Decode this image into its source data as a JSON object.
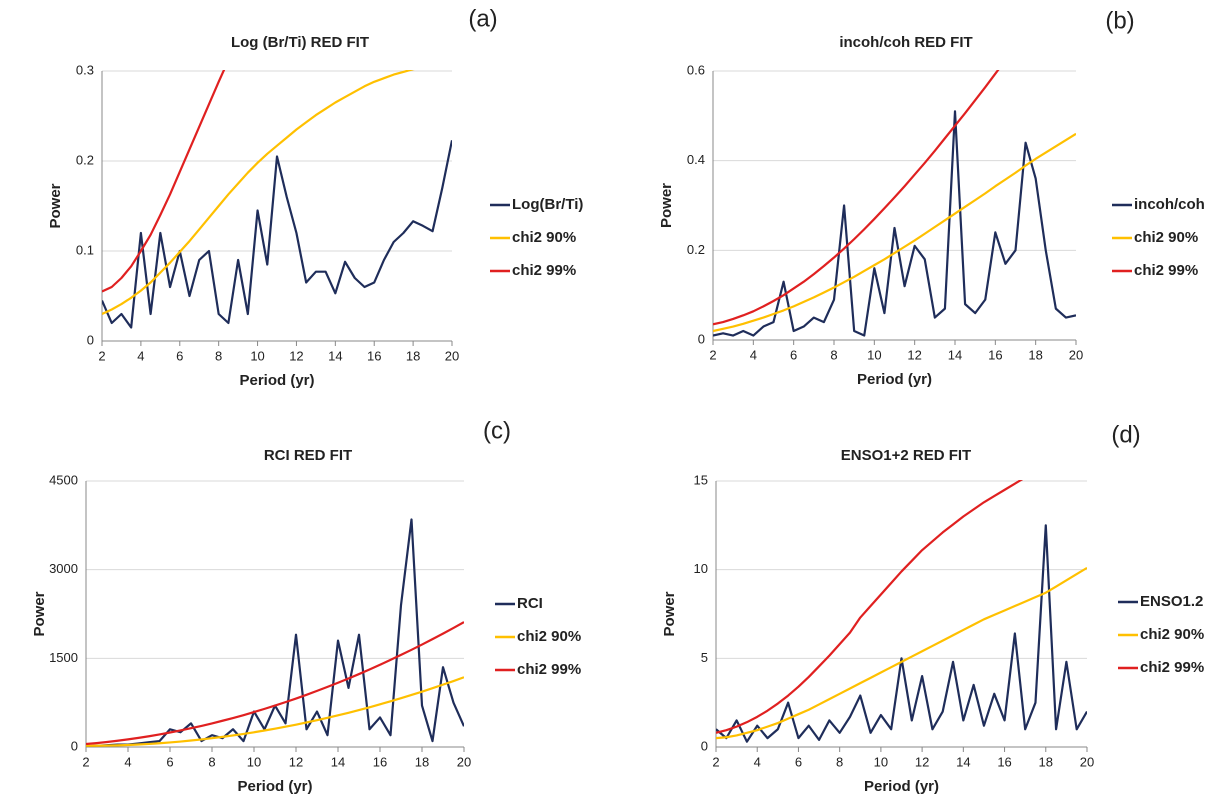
{
  "chart_data": [
    {
      "type": "line",
      "title": "Log (Br/Ti) RED FIT",
      "panel_label": "(a)",
      "xlabel": "Period (yr)",
      "ylabel": "Power",
      "grid": true,
      "xlim": [
        2,
        20
      ],
      "xticks": [
        2,
        4,
        6,
        8,
        10,
        12,
        14,
        16,
        18,
        20
      ],
      "ylim": [
        0,
        0.3
      ],
      "yticks": [
        0,
        0.1,
        0.2,
        0.3
      ],
      "x": [
        2,
        2.5,
        3,
        3.5,
        4,
        4.5,
        5,
        5.5,
        6,
        6.5,
        7,
        7.5,
        8,
        8.5,
        9,
        9.5,
        10,
        10.5,
        11,
        11.5,
        12,
        12.5,
        13,
        13.5,
        14,
        14.5,
        15,
        15.5,
        16,
        16.5,
        17,
        17.5,
        18,
        18.5,
        19,
        19.5,
        20
      ],
      "series": [
        {
          "name": "Log(Br/Ti)",
          "color": "#1f2d5a",
          "values": [
            0.045,
            0.02,
            0.03,
            0.015,
            0.12,
            0.03,
            0.12,
            0.06,
            0.1,
            0.05,
            0.09,
            0.1,
            0.03,
            0.02,
            0.09,
            0.03,
            0.145,
            0.085,
            0.205,
            0.16,
            0.12,
            0.065,
            0.077,
            0.077,
            0.053,
            0.088,
            0.07,
            0.06,
            0.065,
            0.09,
            0.11,
            0.12,
            0.133,
            0.128,
            0.122,
            0.17,
            0.223
          ]
        },
        {
          "name": "chi2 90%",
          "color": "#ffc000",
          "values": [
            0.03,
            0.035,
            0.041,
            0.048,
            0.056,
            0.065,
            0.076,
            0.087,
            0.099,
            0.111,
            0.124,
            0.137,
            0.15,
            0.163,
            0.175,
            0.187,
            0.198,
            0.208,
            0.217,
            0.226,
            0.235,
            0.243,
            0.251,
            0.258,
            0.265,
            0.271,
            0.277,
            0.283,
            0.288,
            0.292,
            0.296,
            0.299,
            0.302,
            0.304,
            0.306,
            0.308,
            0.31
          ]
        },
        {
          "name": "chi2 99%",
          "color": "#e02020",
          "values": [
            0.055,
            0.06,
            0.07,
            0.083,
            0.1,
            0.118,
            0.14,
            0.163,
            0.188,
            0.213,
            0.238,
            0.263,
            0.288,
            0.312,
            0.335,
            null,
            null,
            null,
            null,
            null,
            null,
            null,
            null,
            null,
            null,
            null,
            null,
            null,
            null,
            null,
            null,
            null,
            null,
            null,
            null,
            null,
            null
          ]
        }
      ]
    },
    {
      "type": "line",
      "title": "incoh/coh RED FIT",
      "panel_label": "(b)",
      "xlabel": "Period (yr)",
      "ylabel": "Power",
      "grid": true,
      "xlim": [
        2,
        20
      ],
      "xticks": [
        2,
        4,
        6,
        8,
        10,
        12,
        14,
        16,
        18,
        20
      ],
      "ylim": [
        0,
        0.6
      ],
      "yticks": [
        0,
        0.2,
        0.4,
        0.6
      ],
      "x": [
        2,
        2.5,
        3,
        3.5,
        4,
        4.5,
        5,
        5.5,
        6,
        6.5,
        7,
        7.5,
        8,
        8.5,
        9,
        9.5,
        10,
        10.5,
        11,
        11.5,
        12,
        12.5,
        13,
        13.5,
        14,
        14.5,
        15,
        15.5,
        16,
        16.5,
        17,
        17.5,
        18,
        18.5,
        19,
        19.5,
        20
      ],
      "series": [
        {
          "name": "incoh/coh",
          "color": "#1f2d5a",
          "values": [
            0.01,
            0.015,
            0.01,
            0.02,
            0.01,
            0.03,
            0.04,
            0.13,
            0.02,
            0.03,
            0.05,
            0.04,
            0.09,
            0.3,
            0.02,
            0.01,
            0.16,
            0.06,
            0.25,
            0.12,
            0.21,
            0.18,
            0.05,
            0.07,
            0.51,
            0.08,
            0.06,
            0.09,
            0.24,
            0.17,
            0.2,
            0.44,
            0.36,
            0.2,
            0.07,
            0.05,
            0.055
          ]
        },
        {
          "name": "chi2 90%",
          "color": "#ffc000",
          "values": [
            0.02,
            0.025,
            0.03,
            0.036,
            0.043,
            0.05,
            0.058,
            0.066,
            0.075,
            0.085,
            0.095,
            0.106,
            0.117,
            0.129,
            0.141,
            0.154,
            0.167,
            0.18,
            0.194,
            0.208,
            0.222,
            0.237,
            0.252,
            0.267,
            0.282,
            0.297,
            0.312,
            0.327,
            0.343,
            0.358,
            0.373,
            0.389,
            0.404,
            0.418,
            0.432,
            0.446,
            0.46
          ]
        },
        {
          "name": "chi2 99%",
          "color": "#e02020",
          "values": [
            0.035,
            0.04,
            0.047,
            0.055,
            0.064,
            0.075,
            0.087,
            0.1,
            0.115,
            0.13,
            0.147,
            0.165,
            0.184,
            0.204,
            0.225,
            0.247,
            0.27,
            0.294,
            0.318,
            0.343,
            0.369,
            0.395,
            0.422,
            0.45,
            0.478,
            0.506,
            0.535,
            0.564,
            0.594,
            0.624,
            null,
            null,
            null,
            null,
            null,
            null,
            null
          ]
        }
      ]
    },
    {
      "type": "line",
      "title": "RCI RED FIT",
      "panel_label": "(c)",
      "xlabel": "Period (yr)",
      "ylabel": "Power",
      "grid": true,
      "xlim": [
        2,
        20
      ],
      "xticks": [
        2,
        4,
        6,
        8,
        10,
        12,
        14,
        16,
        18,
        20
      ],
      "ylim": [
        0,
        4500
      ],
      "yticks": [
        0,
        1500,
        3000,
        4500
      ],
      "x": [
        2,
        2.5,
        3,
        3.5,
        4,
        4.5,
        5,
        5.5,
        6,
        6.5,
        7,
        7.5,
        8,
        8.5,
        9,
        9.5,
        10,
        10.5,
        11,
        11.5,
        12,
        12.5,
        13,
        13.5,
        14,
        14.5,
        15,
        15.5,
        16,
        16.5,
        17,
        17.5,
        18,
        18.5,
        19,
        19.5,
        20
      ],
      "series": [
        {
          "name": "RCI",
          "color": "#1f2d5a",
          "values": [
            10,
            20,
            30,
            40,
            40,
            60,
            80,
            100,
            300,
            250,
            400,
            100,
            200,
            150,
            300,
            100,
            600,
            300,
            700,
            400,
            1900,
            300,
            600,
            200,
            1800,
            1000,
            1900,
            300,
            500,
            200,
            2400,
            3850,
            700,
            100,
            1350,
            750,
            350
          ]
        },
        {
          "name": "chi2 90%",
          "color": "#ffc000",
          "values": [
            20,
            21,
            24,
            28,
            34,
            42,
            52,
            64,
            77,
            92,
            110,
            128,
            149,
            171,
            195,
            221,
            249,
            279,
            310,
            343,
            378,
            415,
            453,
            493,
            536,
            579,
            625,
            672,
            722,
            773,
            826,
            880,
            936,
            995,
            1055,
            1116,
            1180
          ]
        },
        {
          "name": "chi2 99%",
          "color": "#e02020",
          "values": [
            50,
            66,
            85,
            106,
            129,
            154,
            182,
            213,
            245,
            280,
            318,
            357,
            399,
            444,
            490,
            539,
            591,
            645,
            701,
            759,
            820,
            883,
            949,
            1017,
            1087,
            1159,
            1234,
            1312,
            1391,
            1473,
            1558,
            1644,
            1733,
            1825,
            1918,
            2014,
            2113
          ]
        }
      ]
    },
    {
      "type": "line",
      "title": "ENSO1+2 RED FIT",
      "panel_label": "(d)",
      "xlabel": "Period (yr)",
      "ylabel": "Power",
      "grid": true,
      "xlim": [
        2,
        20
      ],
      "xticks": [
        2,
        4,
        6,
        8,
        10,
        12,
        14,
        16,
        18,
        20
      ],
      "ylim": [
        0,
        15
      ],
      "yticks": [
        0,
        5,
        10,
        15
      ],
      "x": [
        2,
        2.5,
        3,
        3.5,
        4,
        4.5,
        5,
        5.5,
        6,
        6.5,
        7,
        7.5,
        8,
        8.5,
        9,
        9.5,
        10,
        10.5,
        11,
        11.5,
        12,
        12.5,
        13,
        13.5,
        14,
        14.5,
        15,
        15.5,
        16,
        16.5,
        17,
        17.5,
        18,
        18.5,
        19,
        19.5,
        20
      ],
      "series": [
        {
          "name": "ENSO1.2",
          "color": "#1f2d5a",
          "values": [
            1,
            0.5,
            1.5,
            0.3,
            1.2,
            0.5,
            1,
            2.5,
            0.5,
            1.2,
            0.4,
            1.5,
            0.8,
            1.7,
            2.9,
            0.8,
            1.8,
            1,
            5,
            1.5,
            4,
            1,
            2,
            4.8,
            1.5,
            3.5,
            1.2,
            3,
            1.5,
            6.4,
            1,
            2.5,
            12.5,
            1,
            4.8,
            1,
            2
          ]
        },
        {
          "name": "chi2 90%",
          "color": "#ffc000",
          "values": [
            0.5,
            0.55,
            0.65,
            0.8,
            0.95,
            1.15,
            1.35,
            1.6,
            1.85,
            2.1,
            2.4,
            2.7,
            3,
            3.3,
            3.6,
            3.9,
            4.2,
            4.5,
            4.8,
            5.1,
            5.4,
            5.7,
            6,
            6.3,
            6.6,
            6.9,
            7.2,
            7.45,
            7.7,
            7.95,
            8.2,
            8.45,
            8.7,
            9.05,
            9.4,
            9.75,
            10.1
          ]
        },
        {
          "name": "chi2 99%",
          "color": "#e02020",
          "values": [
            0.8,
            0.95,
            1.15,
            1.4,
            1.7,
            2.05,
            2.45,
            2.9,
            3.4,
            3.95,
            4.55,
            5.15,
            5.8,
            6.45,
            7.3,
            7.95,
            8.6,
            9.25,
            9.9,
            10.5,
            11.1,
            11.6,
            12.1,
            12.55,
            13,
            13.4,
            13.8,
            14.15,
            14.5,
            14.85,
            15.2,
            null,
            null,
            null,
            null,
            null,
            null
          ]
        }
      ]
    }
  ]
}
